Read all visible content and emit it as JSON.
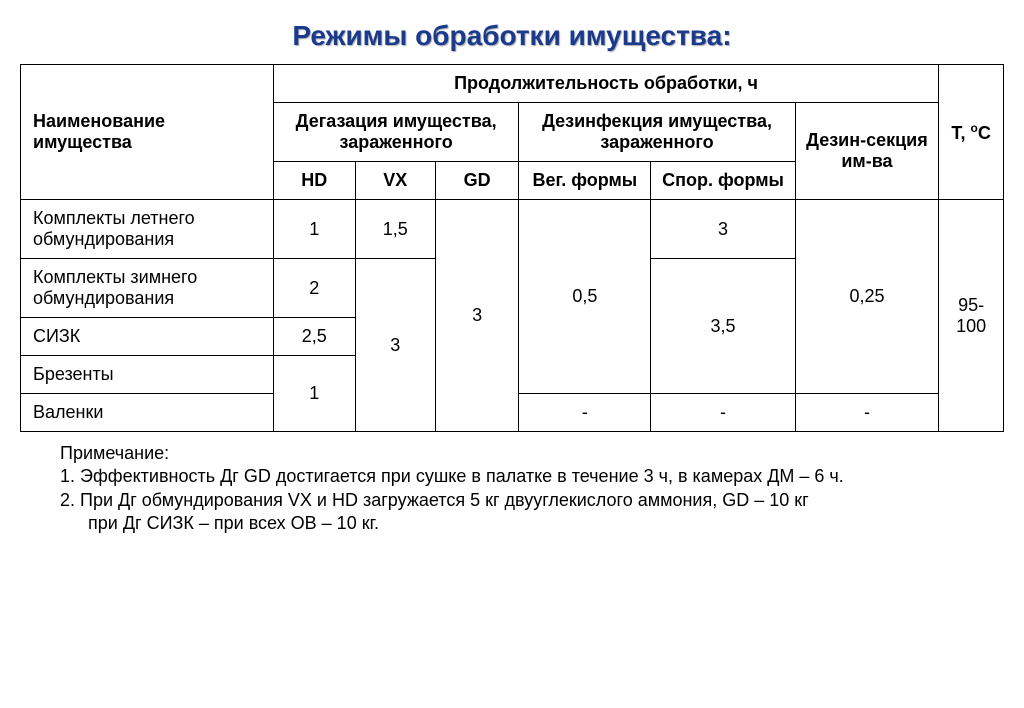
{
  "title": "Режимы обработки имущества:",
  "headers": {
    "name": "Наименование имущества",
    "duration": "Продолжительность обработки, ч",
    "degassing": "Дегазация имущества, зараженного",
    "disinfection": "Дезинфекция имущества, зараженного",
    "disinsection": "Дезин-секция им-ва",
    "temp_prefix": "Т, ",
    "temp_unit": "С",
    "hd": "HD",
    "vx": "VX",
    "gd": "GD",
    "veg": "Вег. формы",
    "spore": "Спор. формы"
  },
  "rows": {
    "r1_name": "Комплекты летнего обмундирования",
    "r1_hd": "1",
    "r1_vx": "1,5",
    "r1_spore": "3",
    "r2_name": "Комплекты зимнего обмундирования",
    "r2_hd": "2",
    "r3_name": "СИЗК",
    "r3_hd": "2,5",
    "r4_name": "Брезенты",
    "r5_name": "Валенки",
    "r5_veg": "-",
    "r5_spore": "-",
    "r5_disins": "-",
    "gd_merged": "3",
    "vx_merged": "3",
    "hd_merged": "1",
    "veg_merged": "0,5",
    "spore_merged": "3,5",
    "disins_merged": "0,25",
    "temp_merged": "95-100"
  },
  "notes": {
    "label": "Примечание:",
    "n1": "1. Эффективность Дг GD достигается при сушке в палатке в течение 3 ч, в камерах ДМ – 6 ч.",
    "n2": "2. При Дг обмундирования VX и HD загружается 5 кг двууглекислого аммония, GD – 10 кг",
    "n2b": "при Дг СИЗК – при всех ОВ – 10 кг."
  },
  "colors": {
    "title_color": "#1a3a8f",
    "border_color": "#000000",
    "background": "#ffffff"
  },
  "typography": {
    "title_fontsize": 28,
    "body_fontsize": 18,
    "font_family": "Arial"
  }
}
